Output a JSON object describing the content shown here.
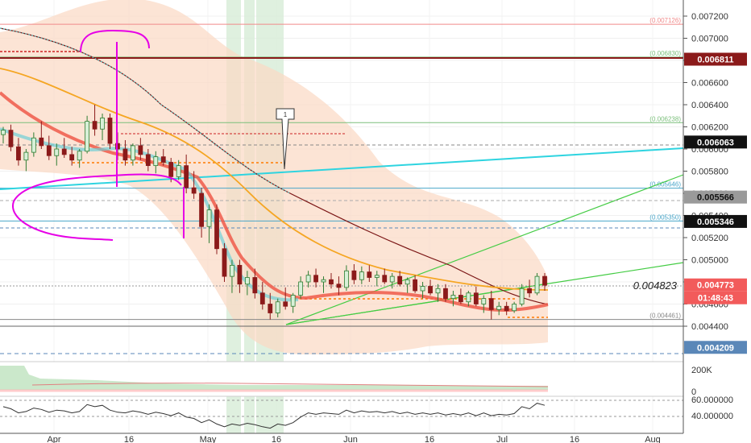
{
  "chart_data": {
    "type": "candlestick",
    "x_ticks": [
      "Apr",
      "16",
      "May",
      "16",
      "Jun",
      "16",
      "Jul",
      "16",
      "Aug"
    ],
    "y_ticks": [
      "0.007200",
      "0.007000",
      "0.006800",
      "0.006600",
      "0.006400",
      "0.006200",
      "0.006000",
      "0.005800",
      "0.005600",
      "0.005400",
      "0.005200",
      "0.005000",
      "0.004800",
      "0.004600",
      "0.004400"
    ],
    "ylim": [
      0.0042,
      0.00728
    ],
    "fib_levels": [
      {
        "label": "(0.007126)",
        "value": 0.007126,
        "color": "#f08a8a"
      },
      {
        "label": "(0.006830)",
        "value": 0.00683,
        "color": "#7bbf7b"
      },
      {
        "label": "(0.006238)",
        "value": 0.006238,
        "color": "#7bbf7b"
      },
      {
        "label": "(0.005646)",
        "value": 0.005646,
        "color": "#49a6c9"
      },
      {
        "label": "(0.005350)",
        "value": 0.00535,
        "color": "#49a6c9"
      },
      {
        "label": "(0.004461)",
        "value": 0.004461,
        "color": "#888888"
      }
    ],
    "price_badges": [
      {
        "text": "0.006811",
        "value": 0.006811,
        "bg": "#8b1a1a",
        "fg": "#ffffff"
      },
      {
        "text": "0.006063",
        "value": 0.006063,
        "bg": "#111111",
        "fg": "#ffffff"
      },
      {
        "text": "0.005566",
        "value": 0.005566,
        "bg": "#9a9a9a",
        "fg": "#111111"
      },
      {
        "text": "0.005346",
        "value": 0.005346,
        "bg": "#111111",
        "fg": "#ffffff"
      },
      {
        "text": "0.004773",
        "value": 0.004773,
        "bg": "#f25b5b",
        "fg": "#ffffff"
      },
      {
        "text": "0.004209",
        "value": 0.004209,
        "bg": "#5a87b8",
        "fg": "#ffffff"
      }
    ],
    "countdown": "01:48:43",
    "current_price_label": "0.004823",
    "annotation_label": "1",
    "volume_ticks": [
      "200K",
      "0"
    ],
    "rsi_ticks": [
      "60.000000",
      "40.000000"
    ],
    "candles": [
      [
        0.00613,
        0.0062,
        0.00605,
        0.00617
      ],
      [
        0.00617,
        0.00622,
        0.00598,
        0.00602
      ],
      [
        0.00602,
        0.0061,
        0.00585,
        0.0059
      ],
      [
        0.0059,
        0.006,
        0.0058,
        0.00597
      ],
      [
        0.00597,
        0.00615,
        0.00593,
        0.0061
      ],
      [
        0.0061,
        0.00625,
        0.006,
        0.00603
      ],
      [
        0.00603,
        0.00612,
        0.0059,
        0.00594
      ],
      [
        0.00594,
        0.00605,
        0.00585,
        0.006
      ],
      [
        0.006,
        0.0061,
        0.00592,
        0.00595
      ],
      [
        0.00595,
        0.00602,
        0.00585,
        0.0059
      ],
      [
        0.0059,
        0.006,
        0.00583,
        0.00598
      ],
      [
        0.00598,
        0.0063,
        0.00596,
        0.00625
      ],
      [
        0.00625,
        0.0064,
        0.00612,
        0.00618
      ],
      [
        0.00618,
        0.00632,
        0.00608,
        0.00628
      ],
      [
        0.00628,
        0.00632,
        0.006,
        0.00605
      ],
      [
        0.00605,
        0.00615,
        0.0059,
        0.006
      ],
      [
        0.006,
        0.00608,
        0.00585,
        0.0059
      ],
      [
        0.0059,
        0.00605,
        0.00585,
        0.00603
      ],
      [
        0.00603,
        0.0061,
        0.0059,
        0.00595
      ],
      [
        0.00595,
        0.006,
        0.0058,
        0.00585
      ],
      [
        0.00585,
        0.00598,
        0.00578,
        0.00593
      ],
      [
        0.00593,
        0.006,
        0.00585,
        0.00588
      ],
      [
        0.00588,
        0.00592,
        0.0057,
        0.00575
      ],
      [
        0.00575,
        0.0059,
        0.00572,
        0.00585
      ],
      [
        0.00585,
        0.00595,
        0.0056,
        0.00565
      ],
      [
        0.00565,
        0.0058,
        0.00555,
        0.0056
      ],
      [
        0.0056,
        0.00565,
        0.0052,
        0.0053
      ],
      [
        0.0053,
        0.0055,
        0.00515,
        0.00545
      ],
      [
        0.00545,
        0.0055,
        0.00505,
        0.0051
      ],
      [
        0.0051,
        0.00515,
        0.0048,
        0.00485
      ],
      [
        0.00485,
        0.005,
        0.0047,
        0.00495
      ],
      [
        0.00495,
        0.005,
        0.0047,
        0.00478
      ],
      [
        0.00478,
        0.0049,
        0.00468,
        0.00484
      ],
      [
        0.00484,
        0.00492,
        0.00465,
        0.0047
      ],
      [
        0.0047,
        0.0048,
        0.00455,
        0.0046
      ],
      [
        0.0046,
        0.0047,
        0.00446,
        0.00452
      ],
      [
        0.00452,
        0.00465,
        0.00448,
        0.00462
      ],
      [
        0.00462,
        0.00475,
        0.00455,
        0.00458
      ],
      [
        0.00458,
        0.0047,
        0.00452,
        0.00468
      ],
      [
        0.00468,
        0.00485,
        0.00465,
        0.0048
      ],
      [
        0.0048,
        0.0049,
        0.00475,
        0.00486
      ],
      [
        0.00486,
        0.00492,
        0.00475,
        0.0048
      ],
      [
        0.0048,
        0.00485,
        0.0047,
        0.00482
      ],
      [
        0.00482,
        0.00488,
        0.00474,
        0.00478
      ],
      [
        0.00478,
        0.00485,
        0.00468,
        0.00475
      ],
      [
        0.00475,
        0.00495,
        0.00472,
        0.0049
      ],
      [
        0.0049,
        0.00496,
        0.00478,
        0.00482
      ],
      [
        0.00482,
        0.00494,
        0.00478,
        0.00489
      ],
      [
        0.00489,
        0.00495,
        0.0048,
        0.00484
      ],
      [
        0.00484,
        0.0049,
        0.00476,
        0.00486
      ],
      [
        0.00486,
        0.00492,
        0.00478,
        0.0048
      ],
      [
        0.0048,
        0.00488,
        0.00474,
        0.00485
      ],
      [
        0.00485,
        0.0049,
        0.00476,
        0.00478
      ],
      [
        0.00478,
        0.00484,
        0.0047,
        0.00482
      ],
      [
        0.00482,
        0.00486,
        0.0047,
        0.00472
      ],
      [
        0.00472,
        0.0048,
        0.00465,
        0.00476
      ],
      [
        0.00476,
        0.00482,
        0.00468,
        0.0047
      ],
      [
        0.0047,
        0.00478,
        0.00462,
        0.00474
      ],
      [
        0.00474,
        0.00478,
        0.00462,
        0.00465
      ],
      [
        0.00465,
        0.00472,
        0.00458,
        0.00468
      ],
      [
        0.00468,
        0.00474,
        0.0046,
        0.00462
      ],
      [
        0.00462,
        0.00472,
        0.00458,
        0.0047
      ],
      [
        0.0047,
        0.00476,
        0.00458,
        0.0046
      ],
      [
        0.0046,
        0.00468,
        0.00452,
        0.00465
      ],
      [
        0.00465,
        0.00472,
        0.00446,
        0.00455
      ],
      [
        0.00455,
        0.00462,
        0.0045,
        0.00458
      ],
      [
        0.00458,
        0.00462,
        0.0045,
        0.00454
      ],
      [
        0.00454,
        0.00462,
        0.00452,
        0.0046
      ],
      [
        0.0046,
        0.00478,
        0.00458,
        0.00474
      ],
      [
        0.00474,
        0.00482,
        0.00466,
        0.0047
      ],
      [
        0.0047,
        0.00488,
        0.00468,
        0.00485
      ],
      [
        0.00485,
        0.00488,
        0.00472,
        0.00477
      ]
    ],
    "rsi": [
      55,
      52,
      46,
      48,
      53,
      51,
      47,
      50,
      49,
      46,
      48,
      58,
      55,
      57,
      50,
      47,
      46,
      49,
      47,
      44,
      47,
      45,
      42,
      46,
      40,
      38,
      32,
      36,
      30,
      26,
      30,
      28,
      31,
      29,
      26,
      24,
      30,
      28,
      32,
      40,
      46,
      44,
      46,
      45,
      44,
      50,
      46,
      49,
      47,
      48,
      46,
      48,
      45,
      47,
      44,
      46,
      44,
      46,
      43,
      45,
      43,
      46,
      42,
      46,
      42,
      44,
      43,
      45,
      55,
      52,
      60,
      57
    ]
  }
}
